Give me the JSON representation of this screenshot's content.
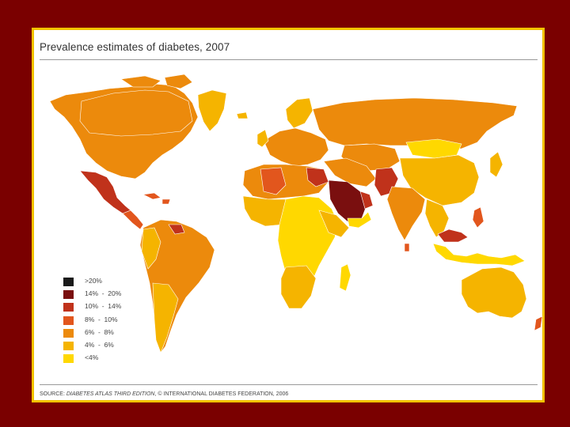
{
  "title": "Prevalence estimates of diabetes, 2007",
  "source": {
    "prefix": "SOURCE: ",
    "italic": "DIABETES ATLAS THIRD EDITION",
    "suffix": ", © INTERNATIONAL DIABETES FEDERATION, 2006"
  },
  "legend": [
    {
      "label": ">20%",
      "color": "#1a1a1a"
    },
    {
      "label": "14%  -  20%",
      "color": "#7a0f0f"
    },
    {
      "label": "10%  -  14%",
      "color": "#c0321b"
    },
    {
      "label": "8%  -  10%",
      "color": "#e2561d"
    },
    {
      "label": "6%  -  8%",
      "color": "#ec8a0c"
    },
    {
      "label": "4%  -  6%",
      "color": "#f5b400"
    },
    {
      "label": "<4%",
      "color": "#ffd800"
    }
  ],
  "colors": {
    "background": "#7a0000",
    "frame_border": "#f2c200",
    "ocean": "#ffffff"
  }
}
